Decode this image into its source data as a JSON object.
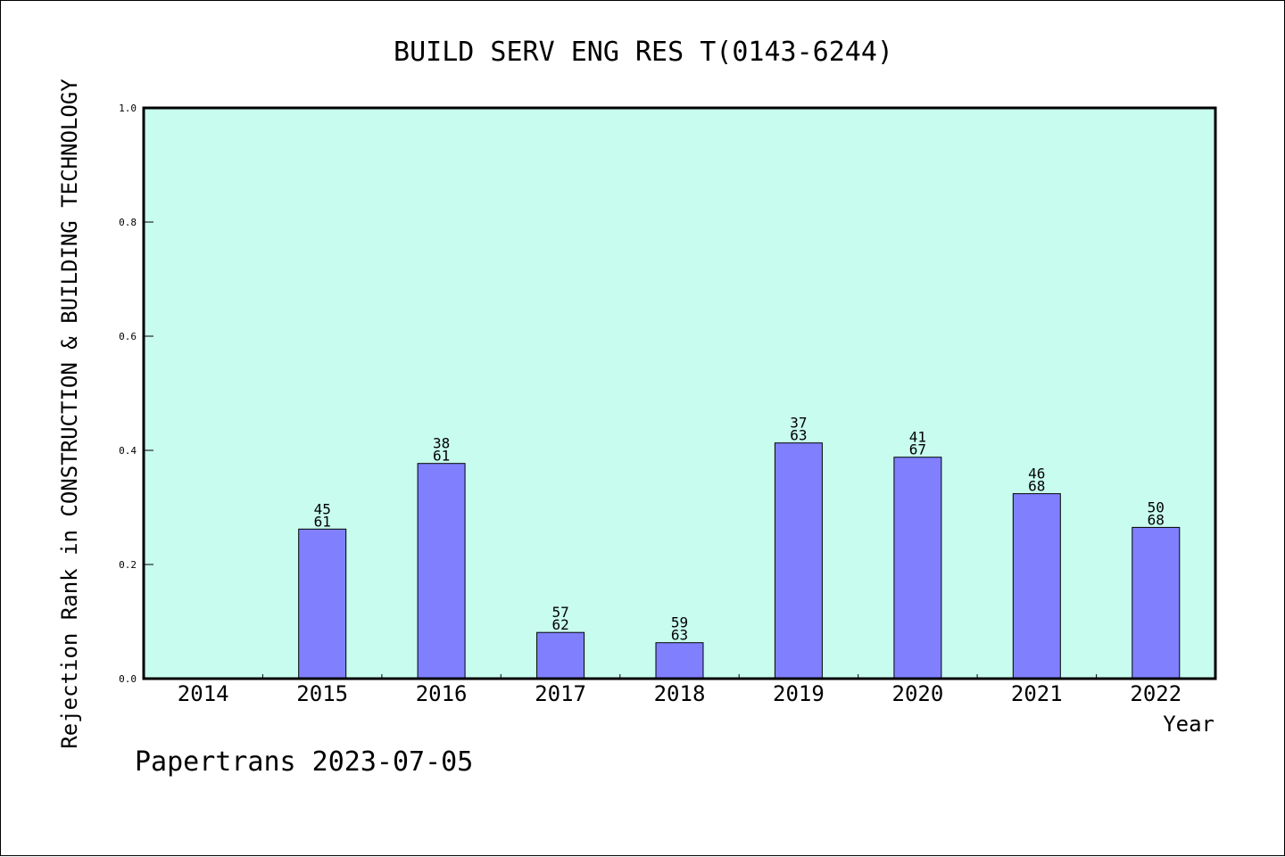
{
  "chart_data": {
    "type": "bar",
    "title": "BUILD SERV ENG RES T(0143-6244)",
    "xlabel": "Year",
    "ylabel": "Rejection Rank in CONSTRUCTION & BUILDING TECHNOLOGY",
    "ylim": [
      0.0,
      1.0
    ],
    "yticks": [
      "0.0",
      "0.2",
      "0.4",
      "0.6",
      "0.8",
      "1.0"
    ],
    "categories": [
      "2014",
      "2015",
      "2016",
      "2017",
      "2018",
      "2019",
      "2020",
      "2021",
      "2022"
    ],
    "values": [
      null,
      0.262,
      0.377,
      0.081,
      0.063,
      0.413,
      0.388,
      0.324,
      0.265
    ],
    "labels_top": [
      "",
      "45",
      "38",
      "57",
      "59",
      "37",
      "41",
      "46",
      "50"
    ],
    "labels_bottom": [
      "",
      "61",
      "61",
      "62",
      "63",
      "63",
      "67",
      "68",
      "68"
    ],
    "grid": false,
    "colors": {
      "plot_bg": "#c8fcee",
      "bar_fill": "#8080ff",
      "bar_stroke": "#000000"
    }
  },
  "footer": "Papertrans 2023-07-05"
}
